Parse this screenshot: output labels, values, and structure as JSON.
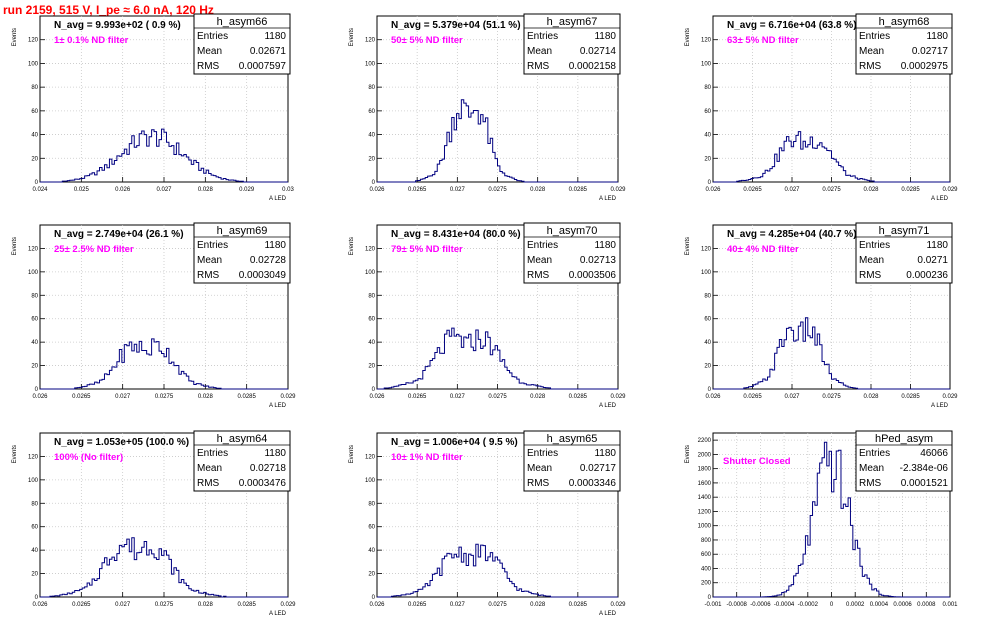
{
  "title": "run 2159,   515 V, I_pe ≈ 6.0 nA, 120 Hz",
  "colors": {
    "title": "#ff0000",
    "histogram": "#000080",
    "filter_label": "#ff00ff",
    "grid": "#c8c8c8"
  },
  "chart_data": [
    {
      "type": "bar",
      "name": "h_asym66",
      "nav": "N_avg = 9.993e+02 ( 0.9 %)",
      "filter": "1± 0.1% ND filter",
      "stats": {
        "entries": "1180",
        "mean": "0.02671",
        "rms": "0.0007597"
      },
      "xlim": [
        0.024,
        0.03
      ],
      "ylim": [
        0,
        140
      ],
      "xticks": [
        "0.024",
        "0.025",
        "0.026",
        "0.027",
        "0.028",
        "0.029",
        "0.03"
      ],
      "yticks": [
        "0",
        "20",
        "40",
        "60",
        "80",
        "100",
        "120"
      ],
      "ylabel": "Events",
      "xlabel": "A_{LED}",
      "grid": true,
      "mean": 0.02671,
      "rms": 0.0007597,
      "peak": 45
    },
    {
      "type": "bar",
      "name": "h_asym67",
      "nav": "N_avg = 5.379e+04 (51.1 %)",
      "filter": "50± 5% ND filter",
      "stats": {
        "entries": "1180",
        "mean": "0.02714",
        "rms": "0.0002158"
      },
      "xlim": [
        0.026,
        0.029
      ],
      "ylim": [
        0,
        140
      ],
      "xticks": [
        "0.026",
        "0.0265",
        "0.027",
        "0.0275",
        "0.028",
        "0.0285",
        "0.029"
      ],
      "yticks": [
        "0",
        "20",
        "40",
        "60",
        "80",
        "100",
        "120"
      ],
      "ylabel": "Events",
      "xlabel": "A_{LED}",
      "grid": true,
      "mean": 0.02714,
      "rms": 0.0002158,
      "peak": 80
    },
    {
      "type": "bar",
      "name": "h_asym68",
      "nav": "N_avg = 6.716e+04 (63.8 %)",
      "filter": "63± 5% ND filter",
      "stats": {
        "entries": "1180",
        "mean": "0.02717",
        "rms": "0.0002975"
      },
      "xlim": [
        0.026,
        0.029
      ],
      "ylim": [
        0,
        140
      ],
      "xticks": [
        "0.026",
        "0.0265",
        "0.027",
        "0.0275",
        "0.028",
        "0.0285",
        "0.029"
      ],
      "yticks": [
        "0",
        "20",
        "40",
        "60",
        "80",
        "100",
        "120"
      ],
      "ylabel": "Events",
      "xlabel": "A_{LED}",
      "grid": true,
      "mean": 0.02717,
      "rms": 0.0002975,
      "peak": 46
    },
    {
      "type": "bar",
      "name": "h_asym69",
      "nav": "N_avg = 2.749e+04 (26.1 %)",
      "filter": "25± 2.5% ND filter",
      "stats": {
        "entries": "1180",
        "mean": "0.02728",
        "rms": "0.0003049"
      },
      "xlim": [
        0.026,
        0.029
      ],
      "ylim": [
        0,
        140
      ],
      "xticks": [
        "0.026",
        "0.0265",
        "0.027",
        "0.0275",
        "0.028",
        "0.0285",
        "0.029"
      ],
      "yticks": [
        "0",
        "20",
        "40",
        "60",
        "80",
        "100",
        "120"
      ],
      "ylabel": "Events",
      "xlabel": "A_{LED}",
      "grid": true,
      "mean": 0.02728,
      "rms": 0.0003049,
      "peak": 47
    },
    {
      "type": "bar",
      "name": "h_asym70",
      "nav": "N_avg = 8.431e+04 (80.0 %)",
      "filter": "79± 5% ND filter",
      "stats": {
        "entries": "1180",
        "mean": "0.02713",
        "rms": "0.0003506"
      },
      "xlim": [
        0.026,
        0.029
      ],
      "ylim": [
        0,
        140
      ],
      "xticks": [
        "0.026",
        "0.0265",
        "0.027",
        "0.0275",
        "0.028",
        "0.0285",
        "0.029"
      ],
      "yticks": [
        "0",
        "20",
        "40",
        "60",
        "80",
        "100",
        "120"
      ],
      "ylabel": "Events",
      "xlabel": "A_{LED}",
      "grid": true,
      "mean": 0.02713,
      "rms": 0.0003506,
      "peak": 55
    },
    {
      "type": "bar",
      "name": "h_asym71",
      "nav": "N_avg = 4.285e+04 (40.7 %)",
      "filter": "40± 4% ND filter",
      "stats": {
        "entries": "1180",
        "mean": "0.0271",
        "rms": "0.000236"
      },
      "xlim": [
        0.026,
        0.029
      ],
      "ylim": [
        0,
        140
      ],
      "xticks": [
        "0.026",
        "0.0265",
        "0.027",
        "0.0275",
        "0.028",
        "0.0285",
        "0.029"
      ],
      "yticks": [
        "0",
        "20",
        "40",
        "60",
        "80",
        "100",
        "120"
      ],
      "ylabel": "Events",
      "xlabel": "A_{LED}",
      "grid": true,
      "mean": 0.0271,
      "rms": 0.000236,
      "peak": 65
    },
    {
      "type": "bar",
      "name": "h_asym64",
      "nav": "N_avg = 1.053e+05 (100.0 %)",
      "filter": "100% (No filter)",
      "stats": {
        "entries": "1180",
        "mean": "0.02718",
        "rms": "0.0003476"
      },
      "xlim": [
        0.026,
        0.029
      ],
      "ylim": [
        0,
        140
      ],
      "xticks": [
        "0.026",
        "0.0265",
        "0.027",
        "0.0275",
        "0.028",
        "0.0285",
        "0.029"
      ],
      "yticks": [
        "0",
        "20",
        "40",
        "60",
        "80",
        "100",
        "120"
      ],
      "ylabel": "Events",
      "xlabel": "A_{LED}",
      "grid": true,
      "mean": 0.02718,
      "rms": 0.0003476,
      "peak": 57
    },
    {
      "type": "bar",
      "name": "h_asym65",
      "nav": "N_avg = 1.006e+04 ( 9.5 %)",
      "filter": "10± 1% ND filter",
      "stats": {
        "entries": "1180",
        "mean": "0.02717",
        "rms": "0.0003346"
      },
      "xlim": [
        0.026,
        0.029
      ],
      "ylim": [
        0,
        140
      ],
      "xticks": [
        "0.026",
        "0.0265",
        "0.027",
        "0.0275",
        "0.028",
        "0.0285",
        "0.029"
      ],
      "yticks": [
        "0",
        "20",
        "40",
        "60",
        "80",
        "100",
        "120"
      ],
      "ylabel": "Events",
      "xlabel": "A_{LED}",
      "grid": true,
      "mean": 0.02717,
      "rms": 0.0003346,
      "peak": 48
    },
    {
      "type": "bar",
      "name": "hPed_asym",
      "nav": "",
      "filter": "Shutter Closed",
      "stats": {
        "entries": "46066",
        "mean": "-2.384e-06",
        "rms": "0.0001521"
      },
      "xlim": [
        -0.001,
        0.001
      ],
      "ylim": [
        0,
        2300
      ],
      "xticks": [
        "-0.001",
        "-0.0008",
        "-0.0006",
        "-0.0004",
        "-0.0002",
        "0",
        "0.0002",
        "0.0004",
        "0.0006",
        "0.0008",
        "0.001"
      ],
      "yticks": [
        "0",
        "200",
        "400",
        "600",
        "800",
        "1000",
        "1200",
        "1400",
        "1600",
        "1800",
        "2000",
        "2200"
      ],
      "ylabel": "Events",
      "xlabel": "",
      "grid": true,
      "mean": -2.384e-06,
      "rms": 0.0001521,
      "peak": 2200
    }
  ]
}
